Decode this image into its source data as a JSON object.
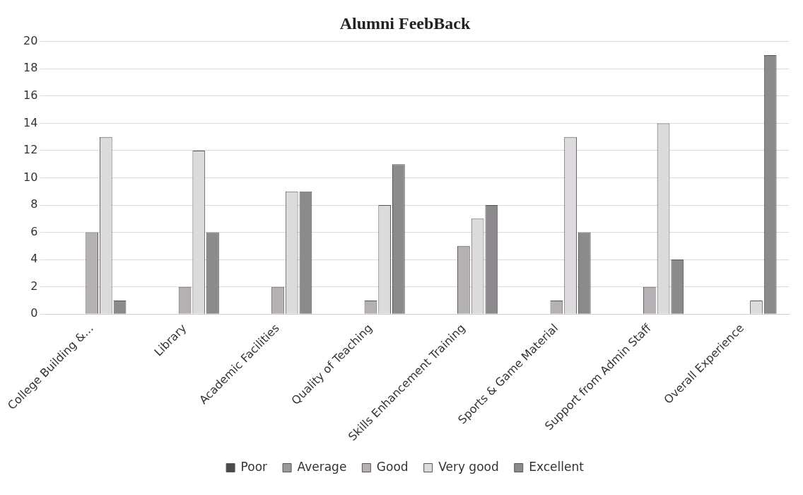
{
  "chart_data": {
    "type": "bar",
    "title": "Alumni FeebBack",
    "categories": [
      "College Building &…",
      "Library",
      "Academic Facilities",
      "Quality of Teaching",
      "Skills Enhancement Training",
      "Sports & Game Material",
      "Support from Admin Staff",
      "Overall Experience"
    ],
    "series": [
      {
        "name": "Poor",
        "color": "#4a4a4a",
        "values": [
          0,
          0,
          0,
          0,
          0,
          0,
          0,
          0
        ]
      },
      {
        "name": "Average",
        "color": "#9a9a9a",
        "values": [
          0,
          0,
          0,
          0,
          0,
          0,
          0,
          0
        ]
      },
      {
        "name": "Good",
        "color": "#b4b0b4",
        "values": [
          6,
          2,
          2,
          1,
          5,
          1,
          2,
          0
        ]
      },
      {
        "name": "Very good",
        "color": "#dddadd",
        "values": [
          13,
          12,
          9,
          8,
          7,
          13,
          14,
          1
        ]
      },
      {
        "name": "Excellent",
        "color": "#8c8a8c",
        "values": [
          1,
          6,
          9,
          11,
          8,
          6,
          4,
          19
        ]
      }
    ],
    "ylim": [
      0,
      20
    ],
    "yticks": [
      0,
      2,
      4,
      6,
      8,
      10,
      12,
      14,
      16,
      18,
      20
    ],
    "grid": "y",
    "legend": "bottom"
  }
}
